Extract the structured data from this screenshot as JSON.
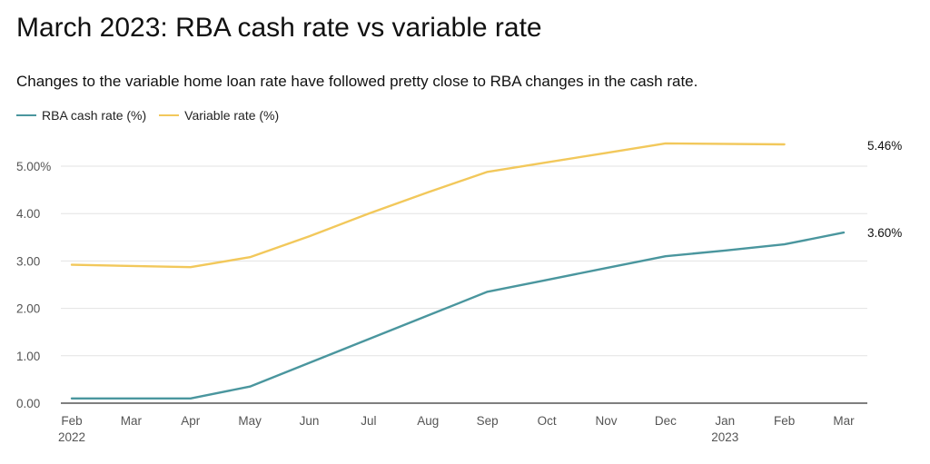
{
  "header": {
    "title": "March 2023: RBA cash rate vs variable rate",
    "subtitle": "Changes to the variable home loan rate have followed pretty close to RBA changes in the cash rate."
  },
  "colors": {
    "cash_rate": "#4a969e",
    "variable_rate": "#f2c85b",
    "grid": "#e3e3e3",
    "axis": "#333333"
  },
  "chart_data": {
    "type": "line",
    "title": "March 2023: RBA cash rate vs variable rate",
    "subtitle": "Changes to the variable home loan rate have followed pretty close to RBA changes in the cash rate.",
    "xlabel": "",
    "ylabel": "",
    "x": [
      "2022-02",
      "2022-03",
      "2022-04",
      "2022-05",
      "2022-06",
      "2022-07",
      "2022-08",
      "2022-09",
      "2022-10",
      "2022-11",
      "2022-12",
      "2023-01",
      "2023-02",
      "2023-03"
    ],
    "x_tick_labels": [
      {
        "label": "Feb",
        "year": "2022"
      },
      {
        "label": "Mar",
        "year": ""
      },
      {
        "label": "Apr",
        "year": ""
      },
      {
        "label": "May",
        "year": ""
      },
      {
        "label": "Jun",
        "year": ""
      },
      {
        "label": "Jul",
        "year": ""
      },
      {
        "label": "Aug",
        "year": ""
      },
      {
        "label": "Sep",
        "year": ""
      },
      {
        "label": "Oct",
        "year": ""
      },
      {
        "label": "Nov",
        "year": ""
      },
      {
        "label": "Dec",
        "year": ""
      },
      {
        "label": "Jan",
        "year": "2023"
      },
      {
        "label": "Feb",
        "year": ""
      },
      {
        "label": "Mar",
        "year": ""
      }
    ],
    "y_ticks": [
      0,
      1,
      2,
      3,
      4,
      5
    ],
    "y_tick_labels": [
      "0.00",
      "1.00",
      "2.00",
      "3.00",
      "4.00",
      "5.00%"
    ],
    "ylim": [
      0,
      5.5
    ],
    "grid": true,
    "legend_position": "top-left",
    "series": [
      {
        "name": "RBA cash rate (%)",
        "key": "cash_rate",
        "x": [
          "2022-02",
          "2022-03",
          "2022-04",
          "2022-05",
          "2022-06",
          "2022-07",
          "2022-08",
          "2022-09",
          "2022-10",
          "2022-11",
          "2022-12",
          "2023-01",
          "2023-02",
          "2023-03"
        ],
        "values": [
          0.1,
          0.1,
          0.1,
          0.35,
          0.85,
          1.35,
          1.85,
          2.35,
          2.6,
          2.85,
          3.1,
          3.22,
          3.35,
          3.6
        ],
        "end_label": "3.60%"
      },
      {
        "name": "Variable rate (%)",
        "key": "variable_rate",
        "x": [
          "2022-02",
          "2022-04",
          "2022-05",
          "2022-06",
          "2022-07",
          "2022-08",
          "2022-09",
          "2022-10",
          "2022-11",
          "2022-12",
          "2023-02"
        ],
        "values": [
          2.92,
          2.87,
          3.08,
          3.52,
          4.0,
          4.45,
          4.88,
          5.08,
          5.28,
          5.48,
          5.46
        ],
        "end_label": "5.46%"
      }
    ]
  }
}
